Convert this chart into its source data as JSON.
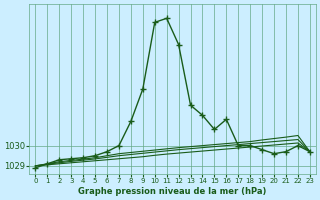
{
  "title": "Graphe pression niveau de la mer (hPa)",
  "background_color": "#cceeff",
  "plot_bg_color": "#cceeff",
  "grid_color": "#66aa88",
  "line_color": "#1a5c1a",
  "x_values": [
    0,
    1,
    2,
    3,
    4,
    5,
    6,
    7,
    8,
    9,
    10,
    11,
    12,
    13,
    14,
    15,
    16,
    17,
    18,
    19,
    20,
    21,
    22,
    23
  ],
  "y_main": [
    1028.9,
    1029.1,
    1029.3,
    1029.35,
    1029.4,
    1029.5,
    1029.7,
    1030.0,
    1031.2,
    1032.8,
    1036.1,
    1036.3,
    1035.0,
    1032.0,
    1031.5,
    1030.8,
    1031.3,
    1030.0,
    1030.0,
    1029.8,
    1029.6,
    1029.7,
    1030.0,
    1029.7
  ],
  "y_line2": [
    1029.0,
    1029.05,
    1029.1,
    1029.15,
    1029.2,
    1029.25,
    1029.3,
    1029.35,
    1029.4,
    1029.45,
    1029.52,
    1029.58,
    1029.63,
    1029.68,
    1029.73,
    1029.78,
    1029.83,
    1029.88,
    1029.93,
    1029.98,
    1030.03,
    1030.08,
    1030.13,
    1029.7
  ],
  "y_line3": [
    1029.0,
    1029.08,
    1029.15,
    1029.22,
    1029.28,
    1029.34,
    1029.42,
    1029.5,
    1029.56,
    1029.62,
    1029.68,
    1029.74,
    1029.8,
    1029.85,
    1029.9,
    1029.95,
    1030.0,
    1030.05,
    1030.1,
    1030.15,
    1030.2,
    1030.25,
    1030.3,
    1029.7
  ],
  "y_line4": [
    1029.0,
    1029.1,
    1029.2,
    1029.27,
    1029.33,
    1029.4,
    1029.5,
    1029.6,
    1029.66,
    1029.72,
    1029.78,
    1029.84,
    1029.9,
    1029.95,
    1030.0,
    1030.05,
    1030.1,
    1030.15,
    1030.2,
    1030.28,
    1030.35,
    1030.42,
    1030.5,
    1029.7
  ],
  "ylim": [
    1028.6,
    1037.0
  ],
  "yticks": [
    1029,
    1030
  ],
  "xlim": [
    -0.5,
    23.5
  ],
  "xticks": [
    0,
    1,
    2,
    3,
    4,
    5,
    6,
    7,
    8,
    9,
    10,
    11,
    12,
    13,
    14,
    15,
    16,
    17,
    18,
    19,
    20,
    21,
    22,
    23
  ]
}
